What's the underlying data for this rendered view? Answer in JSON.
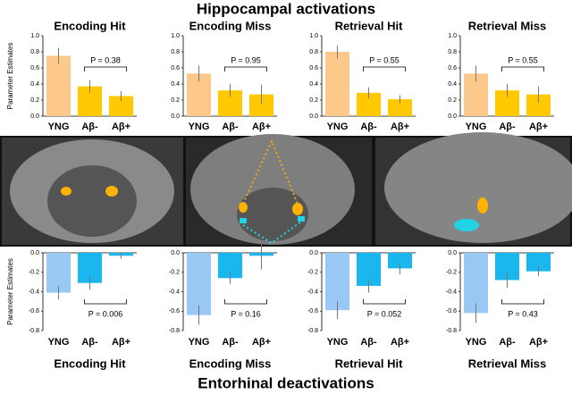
{
  "headings": {
    "top": "Hippocampal activations",
    "bottom": "Entorhinal deactivations"
  },
  "chart_data": [
    {
      "type": "bar",
      "title": "Encoding Hit",
      "y_label": "Parameter Estimates",
      "categories": [
        "YNG",
        "Aβ-",
        "Aβ+"
      ],
      "values": [
        0.75,
        0.37,
        0.25
      ],
      "errors": [
        0.1,
        0.08,
        0.06
      ],
      "colors": [
        "#fcc98a",
        "#ffc800",
        "#ffc800"
      ],
      "annotation": "P = 0.38",
      "ylim": [
        0,
        1
      ],
      "yticks": [
        {
          "value": 0,
          "label": "0.0"
        },
        0.2,
        0.4,
        0.6,
        0.8,
        {
          "value": 1,
          "label": "1.0"
        }
      ]
    },
    {
      "type": "bar",
      "title": "Encoding Miss",
      "categories": [
        "YNG",
        "Aβ-",
        "Aβ+"
      ],
      "values": [
        0.53,
        0.32,
        0.27
      ],
      "errors": [
        0.1,
        0.08,
        0.12
      ],
      "colors": [
        "#fcc98a",
        "#ffc800",
        "#ffc800"
      ],
      "annotation": "P = 0.95",
      "ylim": [
        0,
        1
      ],
      "yticks": [
        {
          "value": 0,
          "label": "0.0"
        },
        0.2,
        0.4,
        0.6,
        0.8,
        {
          "value": 1,
          "label": "1.0"
        }
      ]
    },
    {
      "type": "bar",
      "title": "Retrieval Hit",
      "categories": [
        "YNG",
        "Aβ-",
        "Aβ+"
      ],
      "values": [
        0.8,
        0.29,
        0.21
      ],
      "errors": [
        0.08,
        0.07,
        0.05
      ],
      "colors": [
        "#fcc98a",
        "#ffc800",
        "#ffc800"
      ],
      "annotation": "P = 0.55",
      "ylim": [
        0,
        1
      ],
      "yticks": [
        {
          "value": 0,
          "label": "0.0"
        },
        0.2,
        0.4,
        0.6,
        0.8,
        {
          "value": 1,
          "label": "1.0"
        }
      ]
    },
    {
      "type": "bar",
      "title": "Retrieval Miss",
      "categories": [
        "YNG",
        "Aβ-",
        "Aβ+"
      ],
      "values": [
        0.53,
        0.32,
        0.27
      ],
      "errors": [
        0.1,
        0.08,
        0.1
      ],
      "colors": [
        "#fcc98a",
        "#ffc800",
        "#ffc800"
      ],
      "annotation": "P = 0.55",
      "ylim": [
        0,
        1
      ],
      "yticks": [
        {
          "value": 0,
          "label": "0.0"
        },
        0.2,
        0.4,
        0.6,
        0.8,
        {
          "value": 1,
          "label": "1.0"
        }
      ]
    },
    {
      "type": "bar",
      "title": "Encoding Hit",
      "y_label": "Parameter Estimates",
      "categories": [
        "YNG",
        "Aβ-",
        "Aβ+"
      ],
      "values": [
        -0.41,
        -0.31,
        -0.03
      ],
      "errors": [
        0.07,
        0.07,
        0.03
      ],
      "colors": [
        "#99c8f5",
        "#1ab7ef",
        "#1ab7ef"
      ],
      "annotation": "P = 0.006",
      "ylim": [
        -0.8,
        0
      ],
      "yticks": [
        {
          "value": 0,
          "label": "0.0"
        },
        -0.2,
        -0.4,
        -0.6,
        -0.8
      ]
    },
    {
      "type": "bar",
      "title": "Encoding Miss",
      "categories": [
        "YNG",
        "Aβ-",
        "Aβ+"
      ],
      "values": [
        -0.64,
        -0.26,
        -0.03
      ],
      "errors": [
        0.1,
        0.06,
        0.14
      ],
      "colors": [
        "#99c8f5",
        "#1ab7ef",
        "#1ab7ef"
      ],
      "annotation": "P = 0.16",
      "ylim": [
        -0.8,
        0
      ],
      "yticks": [
        {
          "value": 0,
          "label": "0.0"
        },
        -0.2,
        -0.4,
        -0.6,
        -0.8
      ]
    },
    {
      "type": "bar",
      "title": "Retrieval Hit",
      "categories": [
        "YNG",
        "Aβ-",
        "Aβ+"
      ],
      "values": [
        -0.59,
        -0.34,
        -0.16
      ],
      "errors": [
        0.09,
        0.07,
        0.06
      ],
      "colors": [
        "#99c8f5",
        "#1ab7ef",
        "#1ab7ef"
      ],
      "annotation": "P = 0.052",
      "ylim": [
        -0.8,
        0
      ],
      "yticks": [
        {
          "value": 0,
          "label": "0.0"
        },
        -0.2,
        -0.4,
        -0.6,
        -0.8
      ]
    },
    {
      "type": "bar",
      "title": "Retrieval Miss",
      "categories": [
        "YNG",
        "Aβ-",
        "Aβ+"
      ],
      "values": [
        -0.62,
        -0.28,
        -0.19
      ],
      "errors": [
        0.1,
        0.08,
        0.05
      ],
      "colors": [
        "#99c8f5",
        "#1ab7ef",
        "#1ab7ef"
      ],
      "annotation": "P = 0.43",
      "ylim": [
        -0.8,
        0
      ],
      "yticks": [
        {
          "value": 0,
          "label": "0.0"
        },
        -0.2,
        -0.4,
        -0.6,
        -0.8
      ]
    }
  ]
}
